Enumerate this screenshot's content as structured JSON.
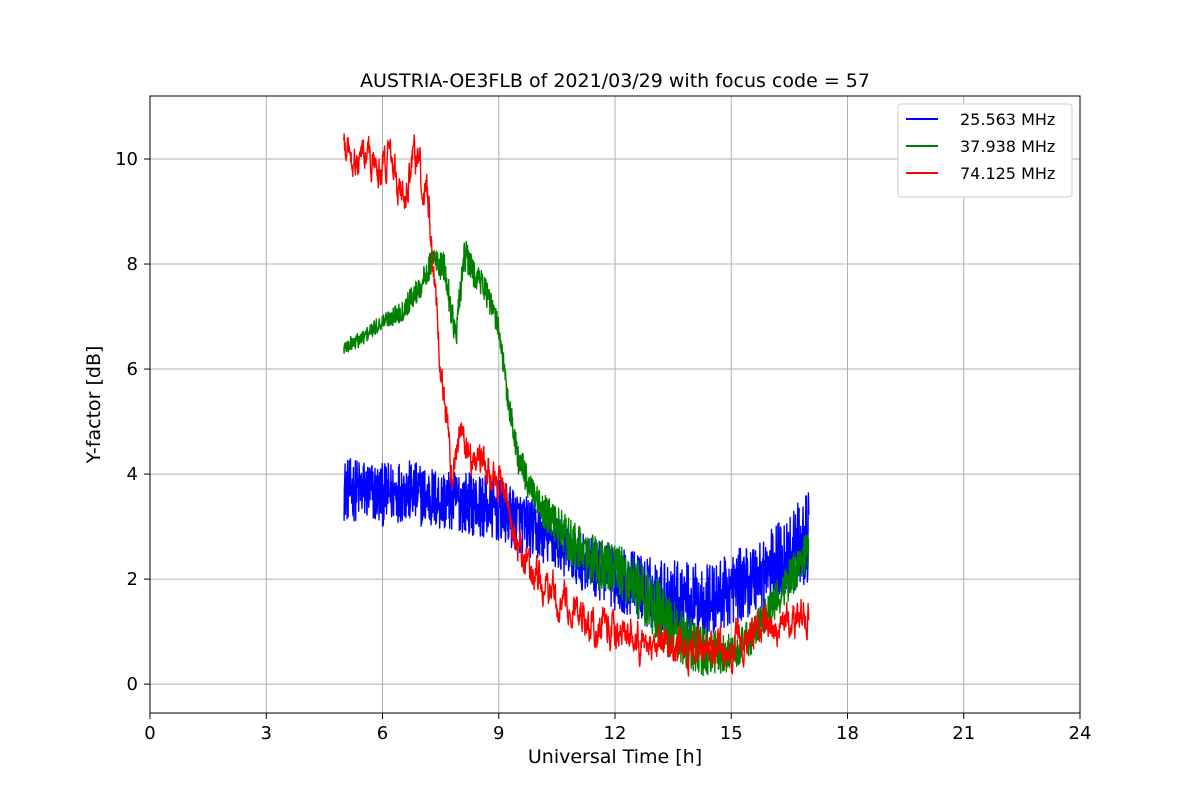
{
  "chart_data": {
    "type": "line",
    "title": "AUSTRIA-OE3FLB of 2021/03/29 with focus code = 57",
    "xlabel": "Universal Time [h]",
    "ylabel": "Y-factor [dB]",
    "xlim": [
      0,
      24
    ],
    "ylim": [
      -0.55,
      11.2
    ],
    "x_ticks": [
      0,
      3,
      6,
      9,
      12,
      15,
      18,
      21,
      24
    ],
    "y_ticks": [
      0,
      2,
      4,
      6,
      8,
      10
    ],
    "grid": true,
    "legend_position": "top-right",
    "series": [
      {
        "name": "25.563 MHz",
        "color": "#0000ff",
        "x": [
          5.0,
          5.5,
          6.0,
          6.5,
          7.0,
          7.5,
          8.0,
          8.5,
          9.0,
          9.5,
          10.0,
          10.5,
          11.0,
          11.5,
          12.0,
          12.5,
          13.0,
          13.5,
          14.0,
          14.5,
          15.0,
          15.5,
          16.0,
          16.5,
          17.0
        ],
        "values": [
          3.7,
          3.7,
          3.6,
          3.7,
          3.6,
          3.5,
          3.5,
          3.4,
          3.3,
          3.1,
          2.9,
          2.7,
          2.4,
          2.2,
          2.0,
          1.9,
          1.7,
          1.7,
          1.6,
          1.6,
          1.8,
          2.0,
          2.2,
          2.5,
          2.8
        ],
        "noise": [
          0.6,
          0.6,
          0.6,
          0.6,
          0.6,
          0.6,
          0.6,
          0.6,
          0.6,
          0.6,
          0.55,
          0.55,
          0.55,
          0.55,
          0.6,
          0.65,
          0.7,
          0.7,
          0.7,
          0.7,
          0.7,
          0.7,
          0.75,
          0.8,
          0.85
        ]
      },
      {
        "name": "37.938 MHz",
        "color": "#008000",
        "x": [
          5.0,
          5.5,
          6.0,
          6.5,
          7.0,
          7.3,
          7.6,
          7.9,
          8.1,
          8.3,
          8.6,
          9.0,
          9.2,
          9.5,
          10.0,
          10.5,
          11.0,
          11.5,
          12.0,
          12.5,
          13.0,
          13.5,
          14.0,
          14.5,
          15.0,
          15.5,
          16.0,
          16.5,
          17.0
        ],
        "values": [
          6.4,
          6.6,
          6.9,
          7.1,
          7.6,
          8.1,
          7.9,
          6.6,
          8.2,
          7.9,
          7.6,
          6.8,
          5.6,
          4.3,
          3.4,
          3.0,
          2.6,
          2.3,
          2.2,
          1.9,
          1.5,
          1.0,
          0.7,
          0.6,
          0.6,
          0.9,
          1.4,
          2.0,
          2.6
        ],
        "noise": [
          0.15,
          0.15,
          0.15,
          0.2,
          0.25,
          0.25,
          0.3,
          0.3,
          0.35,
          0.3,
          0.25,
          0.25,
          0.25,
          0.3,
          0.35,
          0.4,
          0.45,
          0.5,
          0.5,
          0.55,
          0.6,
          0.6,
          0.55,
          0.45,
          0.35,
          0.35,
          0.35,
          0.4,
          0.4
        ]
      },
      {
        "name": "74.125 MHz",
        "color": "#ff0000",
        "x": [
          5.0,
          5.5,
          6.0,
          6.2,
          6.4,
          6.6,
          6.8,
          7.0,
          7.2,
          7.5,
          7.8,
          8.0,
          8.3,
          8.6,
          9.0,
          9.3,
          9.6,
          10.0,
          10.5,
          11.0,
          11.5,
          12.0,
          12.5,
          13.0,
          13.5,
          14.0,
          14.5,
          15.0,
          15.5,
          16.0,
          16.5,
          17.0
        ],
        "values": [
          10.2,
          10.0,
          9.8,
          10.3,
          9.5,
          9.3,
          10.2,
          9.8,
          9.0,
          6.2,
          3.9,
          4.8,
          4.3,
          4.1,
          3.9,
          3.2,
          2.5,
          2.0,
          1.6,
          1.4,
          1.1,
          1.1,
          0.9,
          0.5,
          0.7,
          0.7,
          0.6,
          0.7,
          1.0,
          1.1,
          1.2,
          1.3
        ]
      }
    ]
  }
}
